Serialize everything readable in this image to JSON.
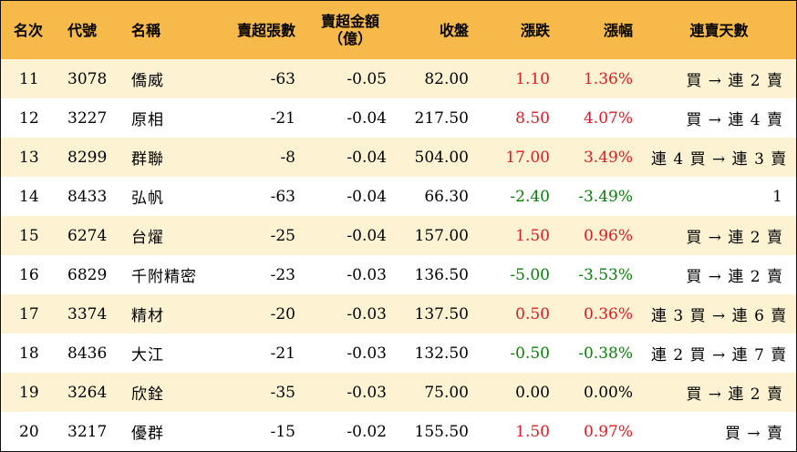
{
  "colors": {
    "header_bg": "#f7b94a",
    "alt_row_bg": "#fdf3d3",
    "up": "#e01a24",
    "down": "#0a7d0a"
  },
  "headers": {
    "rank": "名次",
    "code": "代號",
    "name": "名稱",
    "sell_lots": "賣超張數",
    "sell_amount_line1": "賣超金額",
    "sell_amount_line2": "（億）",
    "close": "收盤",
    "change": "漲跌",
    "change_pct": "漲幅",
    "streak": "連賣天數"
  },
  "rows": [
    {
      "rank": "11",
      "code": "3078",
      "name": "僑威",
      "sell_lots": "-63",
      "sell_amount": "-0.05",
      "close": "82.00",
      "change": "1.10",
      "change_pct": "1.36%",
      "dir": "up",
      "streak": "買 → 連 2 賣"
    },
    {
      "rank": "12",
      "code": "3227",
      "name": "原相",
      "sell_lots": "-21",
      "sell_amount": "-0.04",
      "close": "217.50",
      "change": "8.50",
      "change_pct": "4.07%",
      "dir": "up",
      "streak": "買 → 連 4 賣"
    },
    {
      "rank": "13",
      "code": "8299",
      "name": "群聯",
      "sell_lots": "-8",
      "sell_amount": "-0.04",
      "close": "504.00",
      "change": "17.00",
      "change_pct": "3.49%",
      "dir": "up",
      "streak": "連 4 買 → 連 3 賣"
    },
    {
      "rank": "14",
      "code": "8433",
      "name": "弘帆",
      "sell_lots": "-63",
      "sell_amount": "-0.04",
      "close": "66.30",
      "change": "-2.40",
      "change_pct": "-3.49%",
      "dir": "down",
      "streak": "1"
    },
    {
      "rank": "15",
      "code": "6274",
      "name": "台燿",
      "sell_lots": "-25",
      "sell_amount": "-0.04",
      "close": "157.00",
      "change": "1.50",
      "change_pct": "0.96%",
      "dir": "up",
      "streak": "買 → 連 2 賣"
    },
    {
      "rank": "16",
      "code": "6829",
      "name": "千附精密",
      "sell_lots": "-23",
      "sell_amount": "-0.03",
      "close": "136.50",
      "change": "-5.00",
      "change_pct": "-3.53%",
      "dir": "down",
      "streak": "買 → 連 2 賣"
    },
    {
      "rank": "17",
      "code": "3374",
      "name": "精材",
      "sell_lots": "-20",
      "sell_amount": "-0.03",
      "close": "137.50",
      "change": "0.50",
      "change_pct": "0.36%",
      "dir": "up",
      "streak": "連 3 買 → 連 6 賣"
    },
    {
      "rank": "18",
      "code": "8436",
      "name": "大江",
      "sell_lots": "-21",
      "sell_amount": "-0.03",
      "close": "132.50",
      "change": "-0.50",
      "change_pct": "-0.38%",
      "dir": "down",
      "streak": "連 2 買 → 連 7 賣"
    },
    {
      "rank": "19",
      "code": "3264",
      "name": "欣銓",
      "sell_lots": "-35",
      "sell_amount": "-0.03",
      "close": "75.00",
      "change": "0.00",
      "change_pct": "0.00%",
      "dir": "zero",
      "streak": "買 → 連 2 賣"
    },
    {
      "rank": "20",
      "code": "3217",
      "name": "優群",
      "sell_lots": "-15",
      "sell_amount": "-0.02",
      "close": "155.50",
      "change": "1.50",
      "change_pct": "0.97%",
      "dir": "up",
      "streak": "買 → 賣"
    }
  ]
}
